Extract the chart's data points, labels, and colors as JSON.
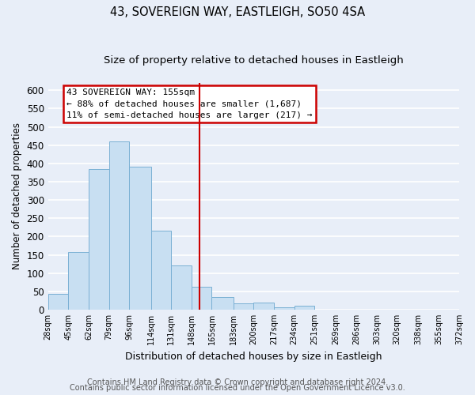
{
  "title": "43, SOVEREIGN WAY, EASTLEIGH, SO50 4SA",
  "subtitle": "Size of property relative to detached houses in Eastleigh",
  "xlabel": "Distribution of detached houses by size in Eastleigh",
  "ylabel": "Number of detached properties",
  "bar_edges": [
    28,
    45,
    62,
    79,
    96,
    114,
    131,
    148,
    165,
    183,
    200,
    217,
    234,
    251,
    269,
    286,
    303,
    320,
    338,
    355,
    372
  ],
  "bar_heights": [
    42,
    158,
    385,
    460,
    390,
    215,
    120,
    62,
    35,
    17,
    20,
    6,
    10,
    0,
    0,
    0,
    0,
    0,
    0,
    0
  ],
  "bar_color": "#c8dff2",
  "bar_edge_color": "#7ab0d4",
  "property_line_x": 155,
  "property_line_color": "#cc0000",
  "ylim": [
    0,
    620
  ],
  "yticks": [
    0,
    50,
    100,
    150,
    200,
    250,
    300,
    350,
    400,
    450,
    500,
    550,
    600
  ],
  "tick_labels": [
    "28sqm",
    "45sqm",
    "62sqm",
    "79sqm",
    "96sqm",
    "114sqm",
    "131sqm",
    "148sqm",
    "165sqm",
    "183sqm",
    "200sqm",
    "217sqm",
    "234sqm",
    "251sqm",
    "269sqm",
    "286sqm",
    "303sqm",
    "320sqm",
    "338sqm",
    "355sqm",
    "372sqm"
  ],
  "annotation_title": "43 SOVEREIGN WAY: 155sqm",
  "annotation_line1": "← 88% of detached houses are smaller (1,687)",
  "annotation_line2": "11% of semi-detached houses are larger (217) →",
  "annotation_box_color": "#ffffff",
  "annotation_box_edge": "#cc0000",
  "footer_line1": "Contains HM Land Registry data © Crown copyright and database right 2024.",
  "footer_line2": "Contains public sector information licensed under the Open Government Licence v3.0.",
  "background_color": "#e8eef8",
  "grid_color": "#ffffff",
  "title_fontsize": 10.5,
  "subtitle_fontsize": 9.5,
  "footer_fontsize": 7
}
